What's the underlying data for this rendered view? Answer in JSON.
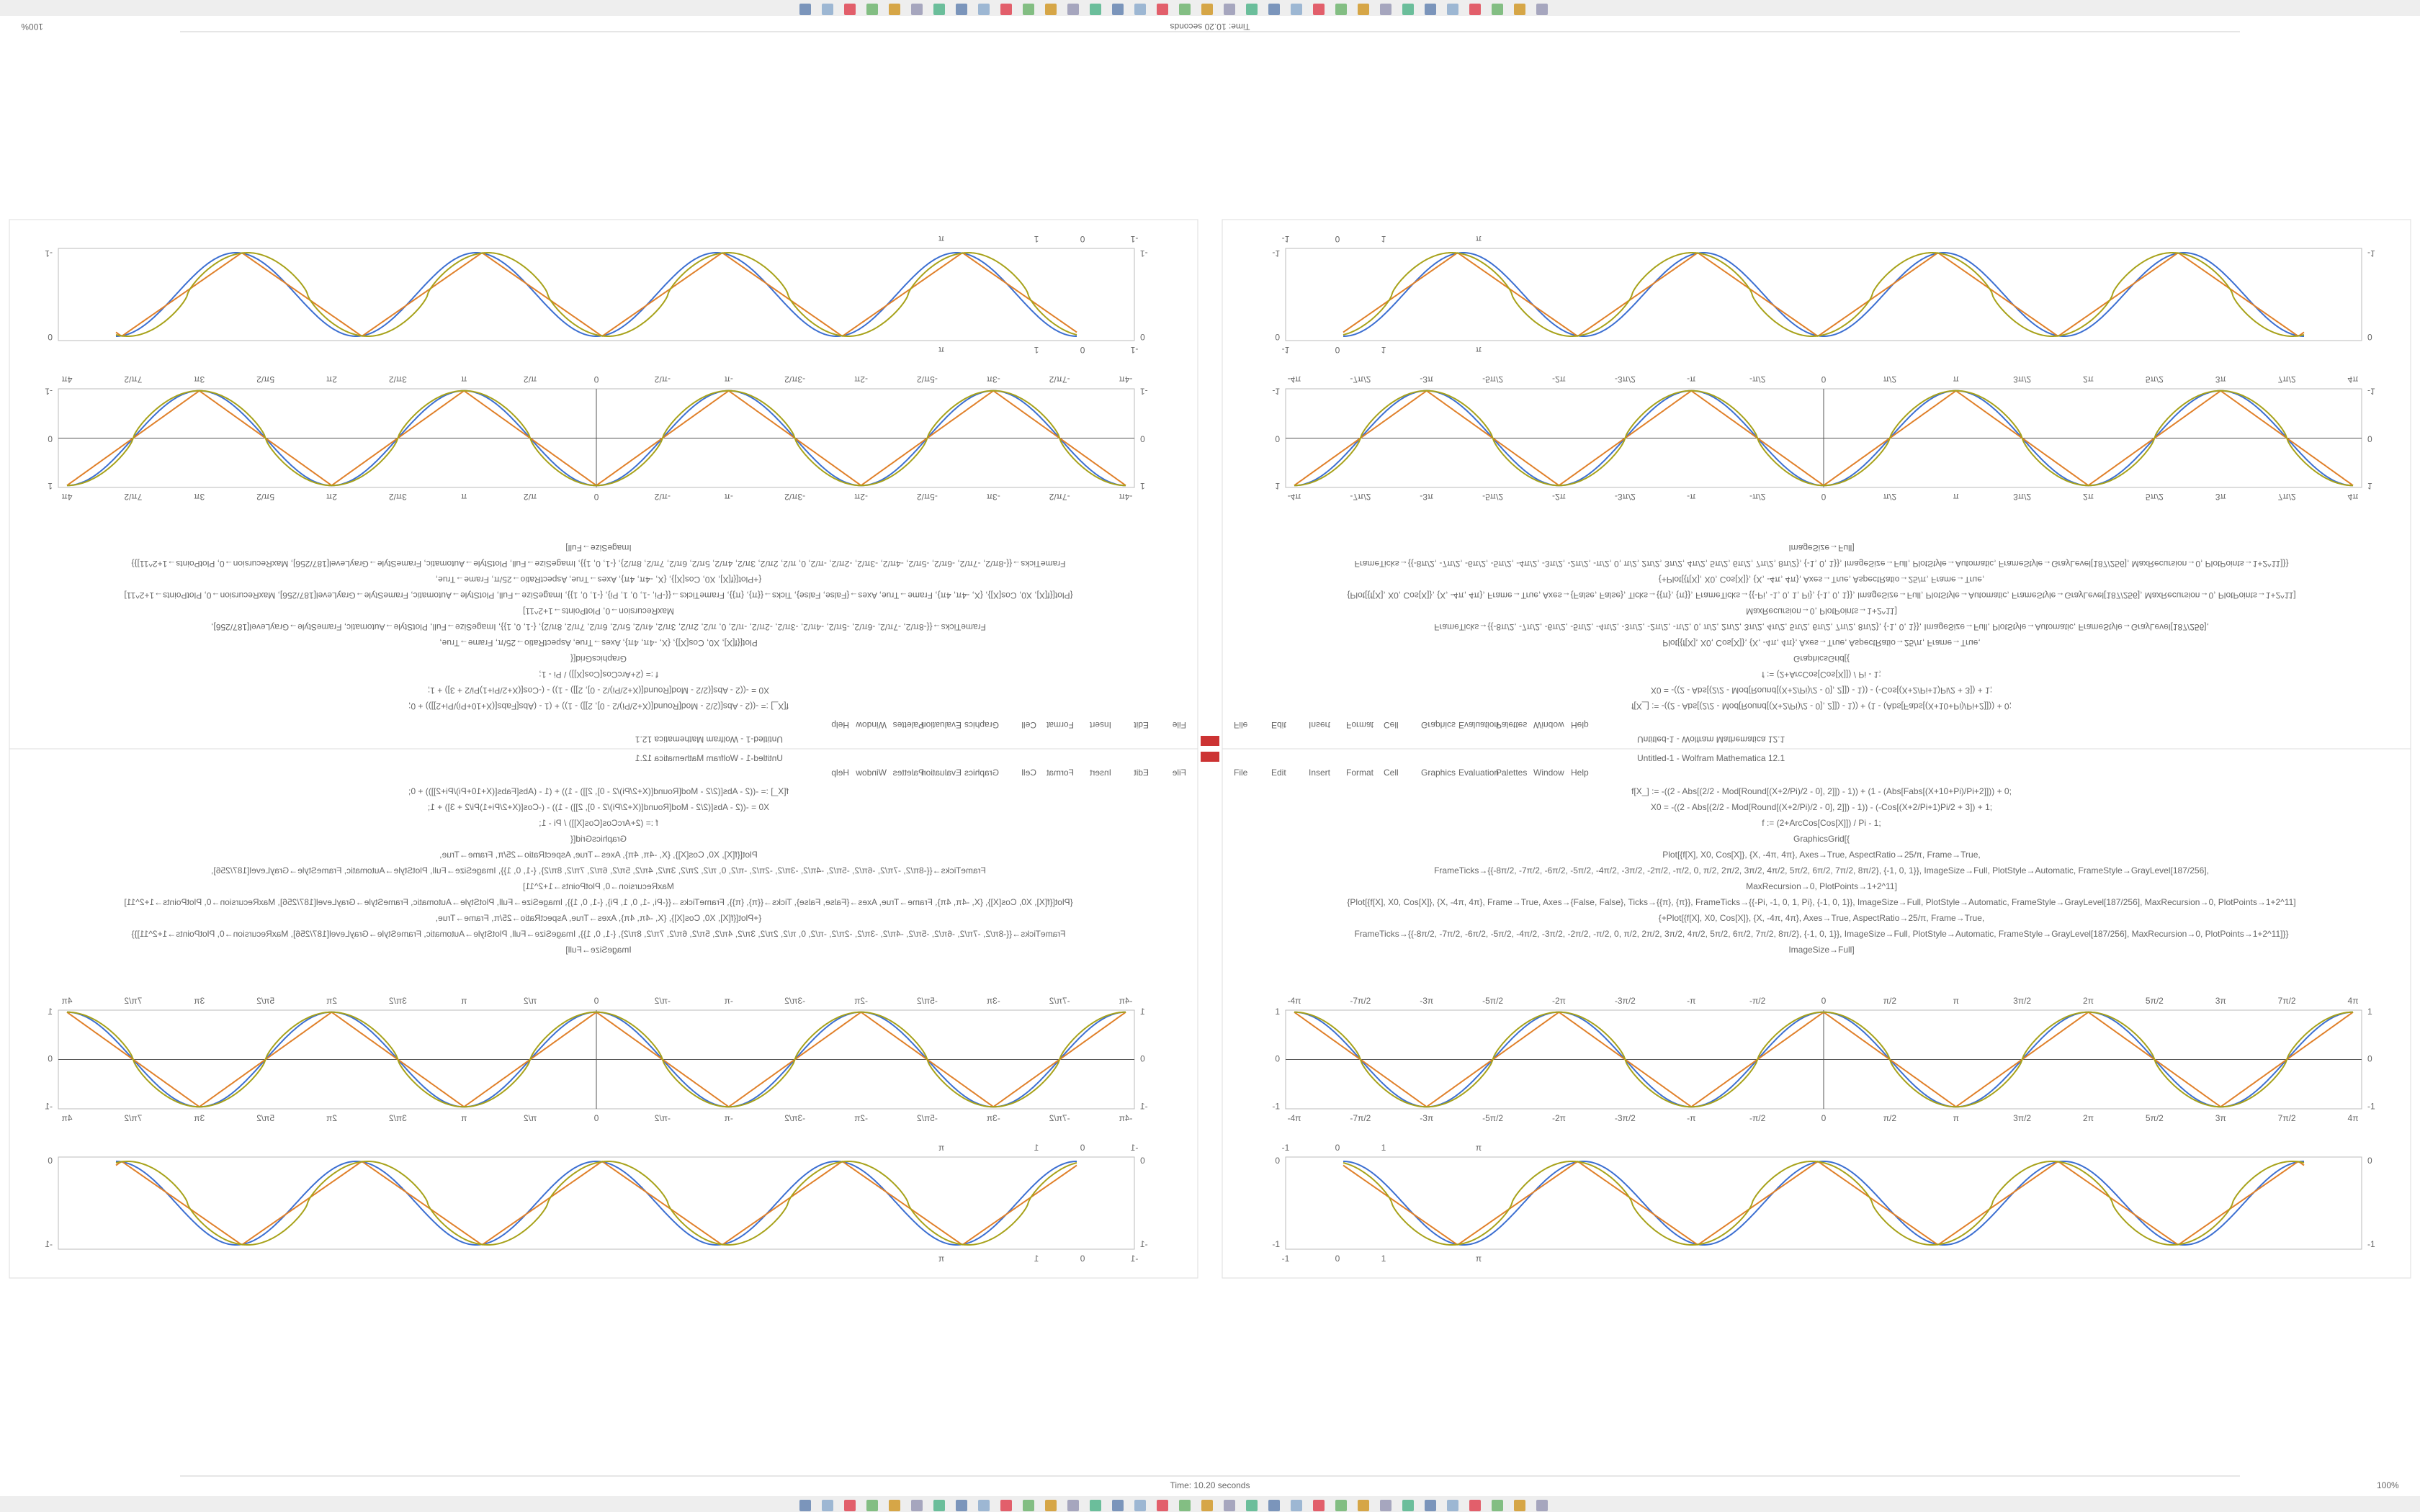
{
  "window_title": "Untitled-1 - Wolfram Mathematica 12.1",
  "menu": [
    "File",
    "Edit",
    "Insert",
    "Format",
    "Cell",
    "Graphics",
    "Evaluation",
    "Palettes",
    "Window",
    "Help"
  ],
  "code": [
    "f[X_] := -((2 - Abs[(2/2 - Mod[Round[(X+2/Pi)/2 - 0], 2]]) - 1)) + (1 - (Abs[Fabs[(X+10+Pi)/Pi+2]])) + 0;",
    "X0 = -((2 - Abs[(2/2 - Mod[Round[(X+2/Pi)/2 - 0], 2]]) - 1)) - (-Cos[(X+2/Pi+1)Pi/2 + 3]) + 1;",
    "f := (2+ArcCos[Cos[X]]) / Pi - 1;",
    "GraphicsGrid[{",
    "Plot[{f[X], X0, Cos[X]}, {X, -4π, 4π}, Axes→True, AspectRatio→25/π, Frame→True,",
    "FrameTicks→{{-8π/2, -7π/2, -6π/2, -5π/2, -4π/2, -3π/2, -2π/2, -π/2, 0, π/2, 2π/2, 3π/2, 4π/2, 5π/2, 6π/2, 7π/2, 8π/2}, {-1, 0, 1}}, ImageSize→Full, PlotStyle→Automatic, FrameStyle→GrayLevel[187/256],",
    "MaxRecursion→0, PlotPoints→1+2^11]",
    "{Plot[{f[X], X0, Cos[X]}, {X, -4π, 4π}, Frame→True, Axes→{False, False}, Ticks→{{π}, {π}}, FrameTicks→{{-Pi, -1, 0, 1, Pi}, {-1, 0, 1}}, ImageSize→Full, PlotStyle→Automatic, FrameStyle→GrayLevel[187/256], MaxRecursion→0, PlotPoints→1+2^11]",
    "{+Plot[{f[X], X0, Cos[X]}, {X, -4π, 4π}, Axes→True, AspectRatio→25/π, Frame→True,",
    "FrameTicks→{{-8π/2, -7π/2, -6π/2, -5π/2, -4π/2, -3π/2, -2π/2, -π/2, 0, π/2, 2π/2, 3π/2, 4π/2, 5π/2, 6π/2, 7π/2, 8π/2}, {-1, 0, 1}}, ImageSize→Full, PlotStyle→Automatic, FrameStyle→GrayLevel[187/256], MaxRecursion→0, PlotPoints→1+2^11]}}",
    "ImageSize→Full]"
  ],
  "plot1": {
    "xticks": [
      "-4π",
      "-7π/2",
      "-3π",
      "-5π/2",
      "-2π",
      "-3π/2",
      "-π",
      "-π/2",
      "0",
      "π/2",
      "π",
      "3π/2",
      "2π",
      "5π/2",
      "3π",
      "7π/2",
      "4π"
    ],
    "yticks": [
      "1",
      "0",
      "-1"
    ]
  },
  "plot2": {
    "xticks": [
      "-1",
      "0",
      "1",
      "π"
    ],
    "yticks": [
      "0",
      "-1"
    ]
  },
  "status": "Time: 10.20 seconds",
  "zoom": "100%"
}
